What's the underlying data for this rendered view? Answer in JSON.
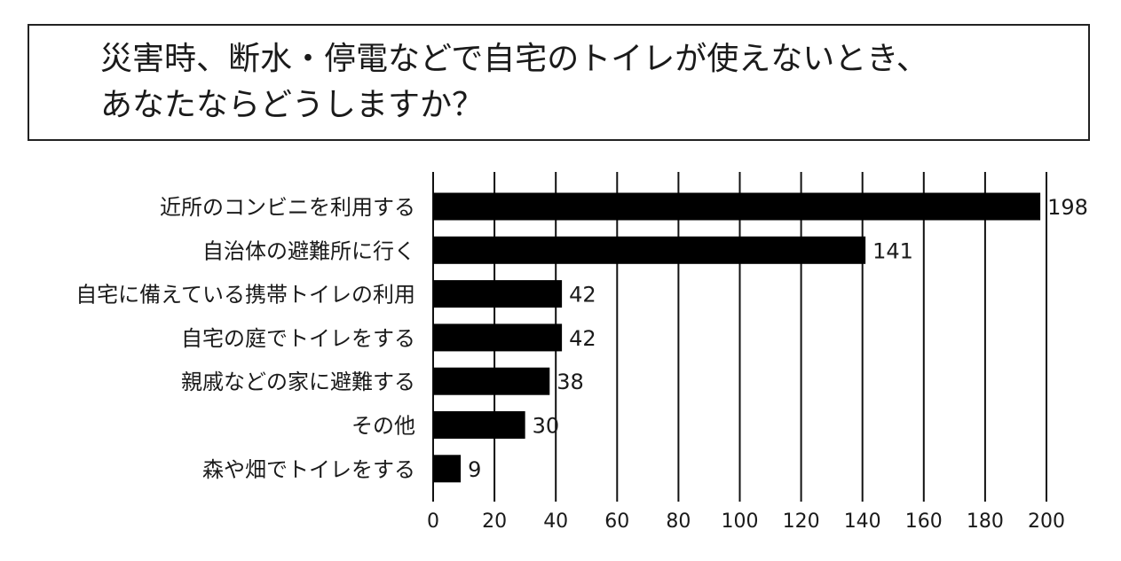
{
  "chart_data": {
    "type": "bar",
    "orientation": "horizontal",
    "title_lines": [
      "災害時、断水・停電などで自宅のトイレが使えないとき、",
      "あなたならどうしますか？"
    ],
    "categories": [
      "近所のコンビニを利用する",
      "自治体の避難所に行く",
      "自宅に備えている携帯トイレの利用",
      "自宅の庭でトイレをする",
      "親戚などの家に避難する",
      "その他",
      "森や畑でトイレをする"
    ],
    "values": [
      198,
      141,
      42,
      42,
      38,
      30,
      9
    ],
    "data_labels": [
      "198",
      "141",
      "42",
      "42",
      "38",
      "30",
      "9"
    ],
    "xlim": [
      0,
      200
    ],
    "x_ticks": [
      "0",
      "20",
      "40",
      "60",
      "80",
      "100",
      "120",
      "140",
      "160",
      "180",
      "200"
    ],
    "grid": true,
    "legend": "none",
    "bar_color": "#000000",
    "grid_color": "#111111"
  }
}
